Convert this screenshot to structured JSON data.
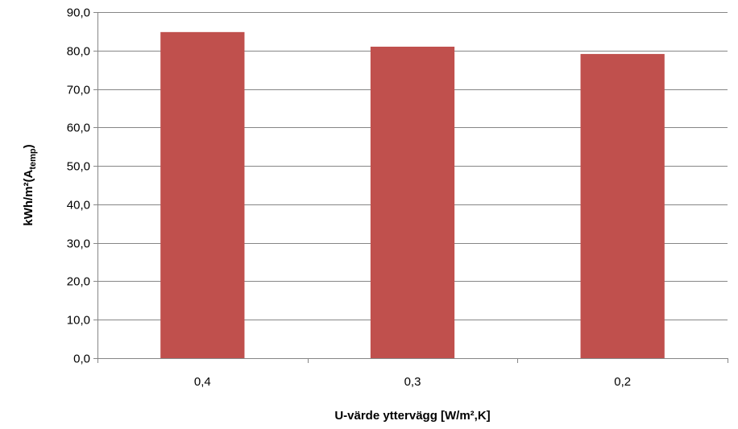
{
  "chart_data": {
    "type": "bar",
    "title": "",
    "categories": [
      "0,4",
      "0,3",
      "0,2"
    ],
    "values": [
      84.8,
      81.0,
      79.1
    ],
    "xlabel": "U-värde yttervägg [W/m²,K]",
    "ylabel": {
      "main": "kWh/m²(A",
      "subscript": "temp",
      "close": ")"
    },
    "ylim": [
      0,
      90
    ],
    "yticks": [
      0,
      10,
      20,
      30,
      40,
      50,
      60,
      70,
      80,
      90
    ],
    "ytick_labels": [
      "0,0",
      "10,0",
      "20,0",
      "30,0",
      "40,0",
      "50,0",
      "60,0",
      "70,0",
      "80,0",
      "90,0"
    ],
    "grid": true,
    "legend": "none",
    "bar_color": "#c0504d",
    "gridline_color": "#868686"
  }
}
